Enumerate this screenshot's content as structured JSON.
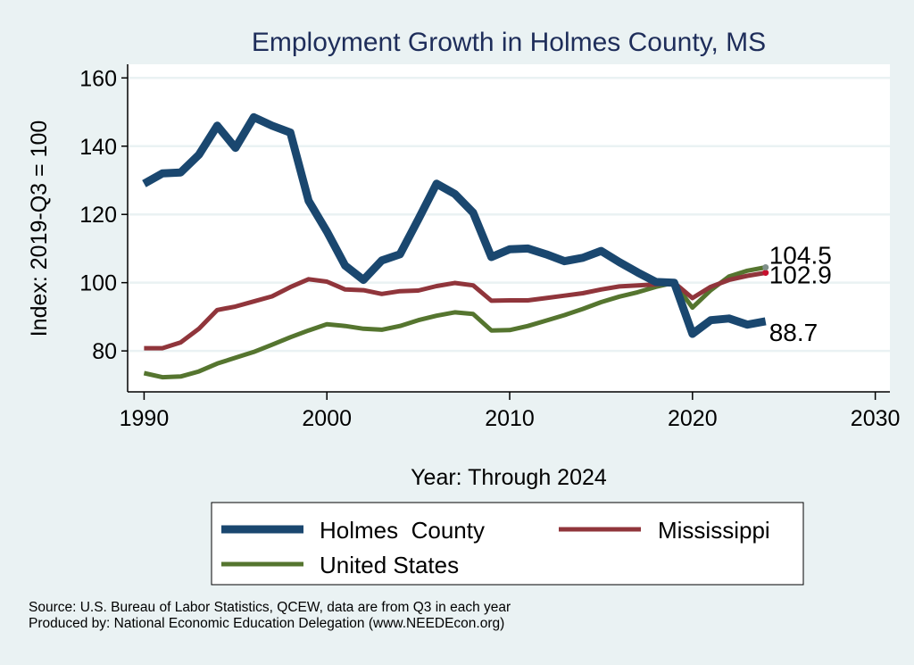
{
  "chart_data": {
    "type": "line",
    "title": "Employment Growth in Holmes County, MS",
    "xlabel": "Year: Through 2024",
    "ylabel": "Index: 2019-Q3 = 100",
    "xlim": [
      1989.1,
      2030.8
    ],
    "ylim": [
      68,
      164
    ],
    "xticks": [
      1990,
      2000,
      2010,
      2020,
      2030
    ],
    "yticks": [
      80,
      100,
      120,
      140,
      160
    ],
    "grid": "horizontal",
    "legend_placement": "bottom",
    "x": [
      1990,
      1991,
      1992,
      1993,
      1994,
      1995,
      1996,
      1997,
      1998,
      1999,
      2000,
      2001,
      2002,
      2003,
      2004,
      2005,
      2006,
      2007,
      2008,
      2009,
      2010,
      2011,
      2012,
      2013,
      2014,
      2015,
      2016,
      2017,
      2018,
      2019,
      2020,
      2021,
      2022,
      2023,
      2024
    ],
    "series": [
      {
        "name": "Holmes  County",
        "color": "#1a476f",
        "width": 9,
        "values": [
          129,
          132,
          132.3,
          137.5,
          146,
          139.5,
          148.5,
          146,
          144,
          124,
          115,
          105,
          100.8,
          106.5,
          108.3,
          118.5,
          129,
          126,
          120.5,
          107.5,
          109.8,
          110,
          108.3,
          106.3,
          107.3,
          109.3,
          106,
          103,
          100.2,
          100,
          85,
          89,
          89.5,
          87.7,
          88.7
        ],
        "end_label": "88.7"
      },
      {
        "name": "Mississippi",
        "color": "#90353b",
        "width": 5,
        "values": [
          80.8,
          80.8,
          82.5,
          86.5,
          92,
          93,
          94.5,
          96,
          98.7,
          101,
          100.3,
          98,
          97.8,
          96.7,
          97.5,
          97.7,
          99,
          99.9,
          99.2,
          94.7,
          94.8,
          94.8,
          95.5,
          96.2,
          96.9,
          98,
          98.9,
          99.2,
          99.5,
          100,
          95.5,
          98.8,
          100.8,
          102,
          102.9
        ],
        "end_label": "102.9",
        "end_dot_color": "#c8102e"
      },
      {
        "name": "United States",
        "color": "#55752f",
        "width": 5,
        "values": [
          73.5,
          72.3,
          72.5,
          74,
          76.3,
          78,
          79.7,
          81.8,
          84,
          86,
          87.8,
          87.3,
          86.5,
          86.2,
          87.3,
          89,
          90.3,
          91.3,
          90.8,
          86,
          86.1,
          87.3,
          88.9,
          90.5,
          92.3,
          94.3,
          95.9,
          97.2,
          98.8,
          100,
          92.7,
          97.8,
          101.8,
          103.5,
          104.5
        ],
        "end_label": "104.5",
        "end_dot_color": "#7f8f8a"
      }
    ]
  },
  "notes": {
    "source": "Source: U.S. Bureau of Labor Statistics, QCEW, data are from Q3 in each year",
    "produced": "Produced by: National Economic Education Delegation (www.NEEDEcon.org)"
  },
  "colors": {
    "background": "#eaf2f3",
    "plot_background": "#ffffff",
    "title": "#1e2d5a",
    "grid": "#eaf2f3"
  }
}
